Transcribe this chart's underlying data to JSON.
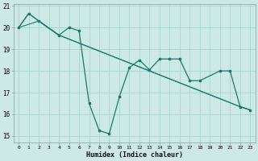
{
  "xlabel": "Humidex (Indice chaleur)",
  "background_color": "#cce9e5",
  "grid_color": "#aad4ce",
  "line_color": "#1a7a6e",
  "xlim": [
    -0.5,
    23.5
  ],
  "ylim": [
    14.7,
    21.1
  ],
  "yticks": [
    15,
    16,
    17,
    18,
    19,
    20,
    21
  ],
  "xticks": [
    0,
    1,
    2,
    3,
    4,
    5,
    6,
    7,
    8,
    9,
    10,
    11,
    12,
    13,
    14,
    15,
    16,
    17,
    18,
    19,
    20,
    21,
    22,
    23
  ],
  "tick_labels_x": [
    "0",
    "1",
    "2",
    "3",
    "4",
    "5",
    "6",
    "7",
    "8",
    "9",
    "10",
    "11",
    "12",
    "13",
    "14",
    "15",
    "16",
    "17",
    "18",
    "19",
    "20",
    "21",
    "22",
    "23"
  ],
  "tick_labels_y": [
    "15",
    "16",
    "17",
    "18",
    "19",
    "20",
    "21"
  ],
  "series_main": {
    "x": [
      0,
      1,
      2,
      4,
      5,
      6,
      7,
      8,
      9,
      10,
      11,
      12,
      13,
      14,
      15,
      16,
      17,
      18,
      20,
      21,
      22,
      23
    ],
    "y": [
      20.0,
      20.65,
      20.3,
      19.65,
      20.0,
      19.85,
      16.5,
      15.25,
      15.1,
      16.8,
      18.15,
      18.5,
      18.05,
      18.55,
      18.55,
      18.55,
      17.55,
      17.55,
      18.0,
      18.0,
      16.35,
      16.2
    ]
  },
  "series_line2": {
    "x": [
      0,
      2,
      4,
      22,
      23
    ],
    "y": [
      20.0,
      20.3,
      19.65,
      16.35,
      16.2
    ]
  },
  "series_line3": {
    "x": [
      0,
      1,
      2,
      4,
      22,
      23
    ],
    "y": [
      20.0,
      20.65,
      20.3,
      19.65,
      16.35,
      16.2
    ]
  },
  "series_extra": {
    "x": [
      2,
      4
    ],
    "y": [
      20.3,
      19.65
    ]
  },
  "figsize": [
    3.2,
    2.0
  ],
  "dpi": 100
}
